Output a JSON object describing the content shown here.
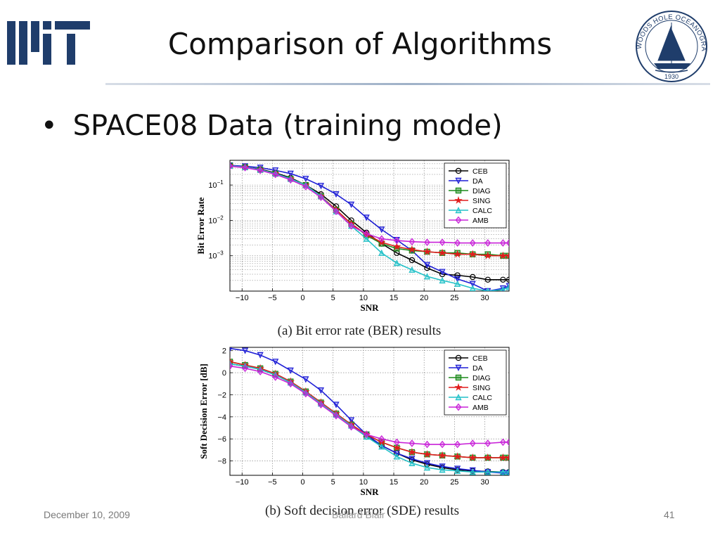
{
  "slide": {
    "title": "Comparison of Algorithms",
    "bullet": "SPACE08 Data (training mode)",
    "footer_date": "December 10, 2009",
    "footer_author": "Ballard Blair",
    "page_number": "41"
  },
  "logos": {
    "left": "MIT logo",
    "right_text": "WOODS HOLE OCEANOGRAPHIC INSTITUTION",
    "right_year": "1930"
  },
  "colors": {
    "CEB": "#000000",
    "DA": "#1f1fd6",
    "DIAG": "#1b8a1b",
    "SING": "#e01c1c",
    "CALC": "#22c1c8",
    "AMB": "#c822d8",
    "navy": "#1f3d6b"
  },
  "chart_data": [
    {
      "type": "line",
      "title": "(a) Bit error rate (BER) results",
      "xlabel": "SNR",
      "ylabel": "Bit Error Rate",
      "yscale": "log",
      "xlim": [
        -12,
        34
      ],
      "ylim": [
        0.0001,
        0.5
      ],
      "xticks": [
        -10,
        -5,
        0,
        5,
        10,
        15,
        20,
        25,
        30
      ],
      "yticks": [
        "10^-1",
        "10^-2",
        "10^-3"
      ],
      "grid": true,
      "legend": "top-right",
      "x": [
        -12,
        -9.5,
        -7,
        -4.5,
        -2,
        0.5,
        3,
        5.5,
        8,
        10.5,
        13,
        15.5,
        18,
        20.5,
        23,
        25.5,
        28,
        30.5,
        33,
        34
      ],
      "series": [
        {
          "name": "CEB",
          "values": [
            0.35,
            0.32,
            0.28,
            0.22,
            0.16,
            0.1,
            0.055,
            0.025,
            0.01,
            0.0045,
            0.0022,
            0.0012,
            0.00075,
            0.00045,
            0.0003,
            0.00028,
            0.00025,
            0.00021,
            0.00021,
            0.00021
          ]
        },
        {
          "name": "DA",
          "values": [
            0.36,
            0.34,
            0.31,
            0.26,
            0.21,
            0.15,
            0.095,
            0.055,
            0.028,
            0.012,
            0.0055,
            0.0028,
            0.0014,
            0.00055,
            0.00035,
            0.00022,
            0.00016,
            0.0001,
            0.00012,
            0.00014
          ]
        },
        {
          "name": "DIAG",
          "values": [
            0.35,
            0.32,
            0.27,
            0.21,
            0.15,
            0.1,
            0.048,
            0.02,
            0.008,
            0.0038,
            0.0022,
            0.0016,
            0.0014,
            0.0013,
            0.0012,
            0.0012,
            0.0011,
            0.0011,
            0.001,
            0.001
          ]
        },
        {
          "name": "SING",
          "values": [
            0.35,
            0.32,
            0.27,
            0.21,
            0.15,
            0.1,
            0.048,
            0.02,
            0.008,
            0.004,
            0.0024,
            0.0018,
            0.0015,
            0.0013,
            0.0012,
            0.0011,
            0.0011,
            0.001,
            0.001,
            0.001
          ]
        },
        {
          "name": "CALC",
          "values": [
            0.35,
            0.32,
            0.27,
            0.21,
            0.15,
            0.1,
            0.048,
            0.018,
            0.007,
            0.003,
            0.0012,
            0.00062,
            0.0004,
            0.00026,
            0.0002,
            0.00016,
            0.00012,
            0.0001,
            0.00011,
            0.00013
          ]
        },
        {
          "name": "AMB",
          "values": [
            0.34,
            0.31,
            0.26,
            0.2,
            0.14,
            0.09,
            0.045,
            0.018,
            0.007,
            0.0042,
            0.003,
            0.0027,
            0.0025,
            0.0024,
            0.0024,
            0.0023,
            0.0023,
            0.0023,
            0.0023,
            0.0023
          ]
        }
      ]
    },
    {
      "type": "line",
      "title": "(b) Soft decision error (SDE) results",
      "xlabel": "SNR",
      "ylabel": "Soft Decision Error [dB]",
      "xlim": [
        -12,
        34
      ],
      "ylim": [
        -9.3,
        2.3
      ],
      "xticks": [
        -10,
        -5,
        0,
        5,
        10,
        15,
        20,
        25,
        30
      ],
      "yticks": [
        2,
        0,
        -2,
        -4,
        -6,
        -8
      ],
      "grid": true,
      "legend": "top-right",
      "x": [
        -12,
        -9.5,
        -7,
        -4.5,
        -2,
        0.5,
        3,
        5.5,
        8,
        10.5,
        13,
        15.5,
        18,
        20.5,
        23,
        25.5,
        28,
        30.5,
        33,
        34
      ],
      "series": [
        {
          "name": "CEB",
          "values": [
            0.8,
            0.6,
            0.3,
            -0.2,
            -0.9,
            -1.8,
            -2.8,
            -3.8,
            -4.8,
            -5.8,
            -6.6,
            -7.3,
            -7.9,
            -8.3,
            -8.6,
            -8.8,
            -8.9,
            -8.95,
            -9.0,
            -9.0
          ]
        },
        {
          "name": "DA",
          "values": [
            2.2,
            2.0,
            1.6,
            1.0,
            0.2,
            -0.6,
            -1.6,
            -2.9,
            -4.3,
            -5.6,
            -6.6,
            -7.3,
            -7.8,
            -8.2,
            -8.5,
            -8.7,
            -8.85,
            -9.0,
            -9.1,
            -9.1
          ]
        },
        {
          "name": "DIAG",
          "values": [
            1.0,
            0.7,
            0.4,
            -0.1,
            -0.8,
            -1.7,
            -2.7,
            -3.7,
            -4.7,
            -5.6,
            -6.3,
            -6.8,
            -7.2,
            -7.4,
            -7.5,
            -7.6,
            -7.7,
            -7.7,
            -7.7,
            -7.7
          ]
        },
        {
          "name": "SING",
          "values": [
            1.0,
            0.7,
            0.4,
            -0.1,
            -0.8,
            -1.7,
            -2.7,
            -3.7,
            -4.7,
            -5.6,
            -6.3,
            -6.8,
            -7.2,
            -7.4,
            -7.5,
            -7.6,
            -7.7,
            -7.7,
            -7.7,
            -7.7
          ]
        },
        {
          "name": "CALC",
          "values": [
            0.8,
            0.6,
            0.3,
            -0.2,
            -0.9,
            -1.8,
            -2.8,
            -3.8,
            -4.8,
            -5.8,
            -6.7,
            -7.6,
            -8.2,
            -8.6,
            -8.8,
            -8.9,
            -9.0,
            -9.0,
            -9.0,
            -9.0
          ]
        },
        {
          "name": "AMB",
          "values": [
            0.6,
            0.4,
            0.1,
            -0.4,
            -1.0,
            -1.9,
            -2.9,
            -3.9,
            -4.9,
            -5.6,
            -6.0,
            -6.3,
            -6.4,
            -6.5,
            -6.5,
            -6.5,
            -6.4,
            -6.4,
            -6.3,
            -6.3
          ]
        }
      ]
    }
  ]
}
